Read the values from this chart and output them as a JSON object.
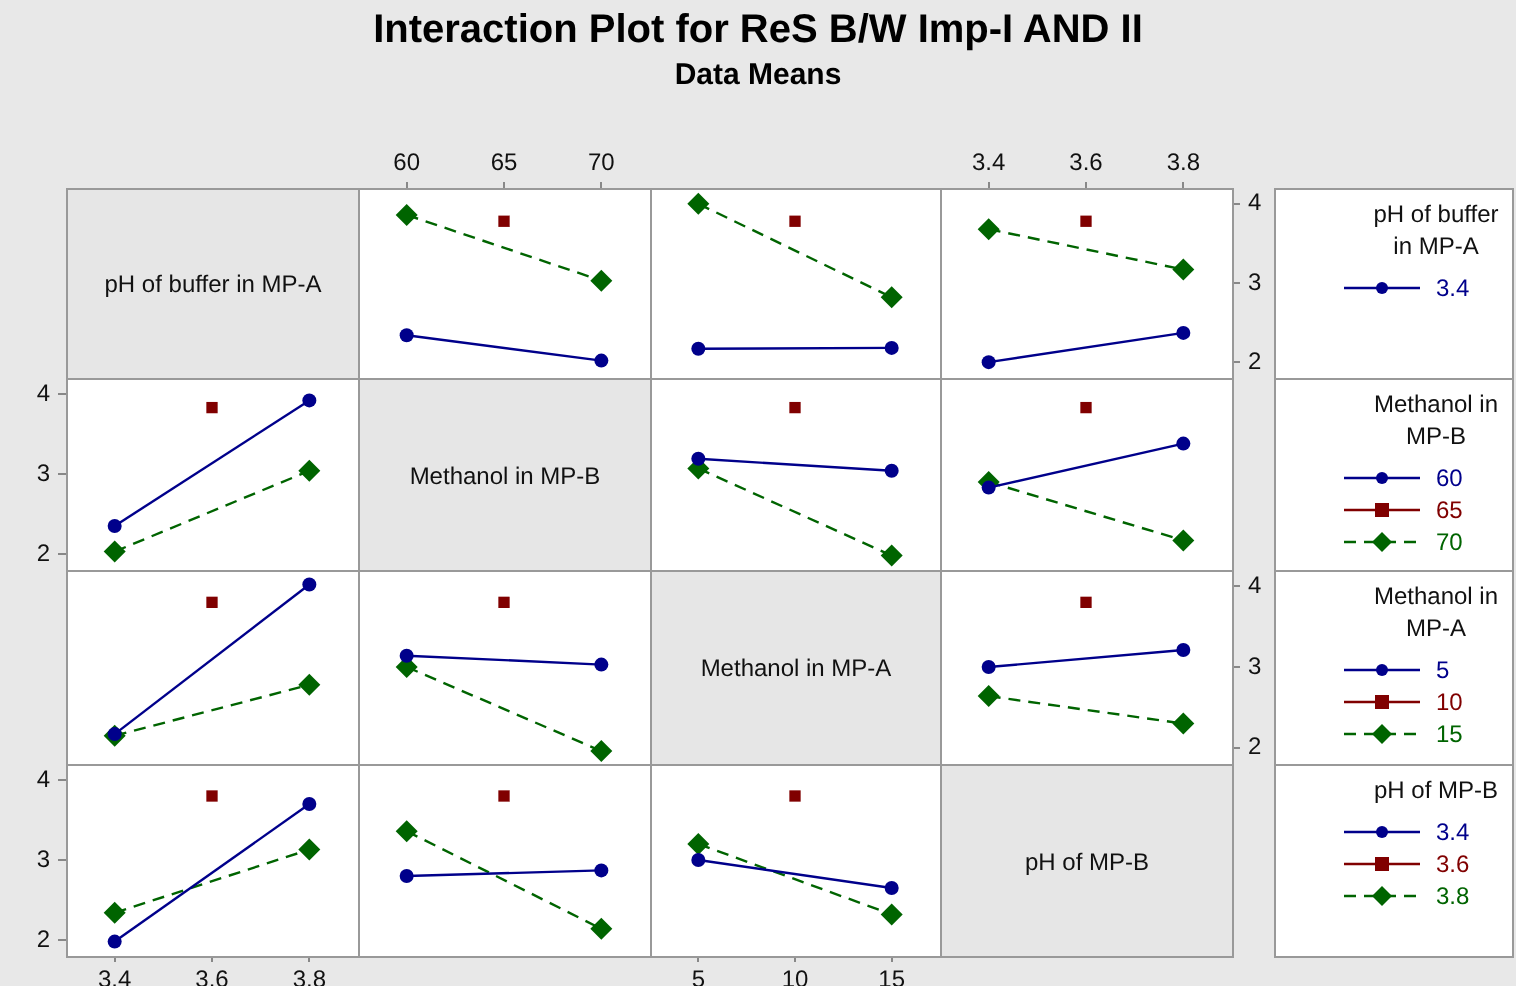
{
  "chart_data": [
    {
      "type": "other",
      "title": "Interaction Plot for ReS B/W Imp-I AND II",
      "subtitle": "Data Means"
    },
    {
      "type": "other",
      "title": "pH of buffer in MP-A"
    },
    {
      "type": "line",
      "x": [
        60,
        65,
        70
      ],
      "xlim": [
        57.5,
        72.5
      ],
      "xticks": [
        60,
        65,
        70
      ],
      "ylim": [
        1.8,
        4.2
      ],
      "yticks": [
        2,
        3,
        4
      ],
      "tick_labels": "x",
      "series": [
        {
          "color": "#00008b",
          "marker": "circle",
          "line_style": "solid",
          "values": [
            2.34,
            null,
            2.02
          ]
        },
        {
          "color": "#800000",
          "marker": "square",
          "line_style": "solid",
          "values": [
            null,
            3.78,
            null
          ]
        },
        {
          "color": "#006400",
          "marker": "diamond",
          "line_style": "dashed",
          "values": [
            3.86,
            null,
            3.03
          ]
        }
      ]
    },
    {
      "type": "line",
      "x": [
        5,
        10,
        15
      ],
      "xlim": [
        2.5,
        17.5
      ],
      "xticks": [
        5,
        10,
        15
      ],
      "ylim": [
        1.8,
        4.2
      ],
      "yticks": [
        2,
        3,
        4
      ],
      "tick_labels": false,
      "series": [
        {
          "color": "#00008b",
          "marker": "circle",
          "line_style": "solid",
          "values": [
            2.17,
            null,
            2.18
          ]
        },
        {
          "color": "#800000",
          "marker": "square",
          "line_style": "solid",
          "values": [
            null,
            3.78,
            null
          ]
        },
        {
          "color": "#006400",
          "marker": "diamond",
          "line_style": "dashed",
          "values": [
            4.0,
            null,
            2.82
          ]
        }
      ]
    },
    {
      "type": "line",
      "x": [
        3.4,
        3.6,
        3.8
      ],
      "xlim": [
        3.3,
        3.9
      ],
      "xticks": [
        3.4,
        3.6,
        3.8
      ],
      "ylim": [
        1.8,
        4.2
      ],
      "yticks": [
        2,
        3,
        4
      ],
      "legend": "right",
      "legend_title": "pH of buffer in MP-A",
      "series": [
        {
          "name": "3.4",
          "color": "#00008b",
          "marker": "circle",
          "line_style": "solid",
          "values": [
            2.0,
            null,
            2.37
          ]
        },
        {
          "color": "#800000",
          "marker": "square",
          "line_style": "solid",
          "values": [
            null,
            3.78,
            null
          ]
        },
        {
          "color": "#006400",
          "marker": "diamond",
          "line_style": "dashed",
          "values": [
            3.68,
            null,
            3.17
          ]
        }
      ]
    },
    {
      "type": "line",
      "x": [
        3.4,
        3.6,
        3.8
      ],
      "xlim": [
        3.3,
        3.9
      ],
      "xticks": [
        3.4,
        3.6,
        3.8
      ],
      "ylim": [
        1.8,
        4.2
      ],
      "yticks": [
        2,
        3,
        4
      ],
      "tick_labels": "y",
      "series": [
        {
          "color": "#00008b",
          "marker": "circle",
          "line_style": "solid",
          "values": [
            2.35,
            null,
            3.92
          ]
        },
        {
          "color": "#800000",
          "marker": "square",
          "line_style": "solid",
          "values": [
            null,
            3.83,
            null
          ]
        },
        {
          "color": "#006400",
          "marker": "diamond",
          "line_style": "dashed",
          "values": [
            2.03,
            null,
            3.04
          ]
        }
      ]
    },
    {
      "type": "other",
      "title": "Methanol in MP-B"
    },
    {
      "type": "line",
      "x": [
        5,
        10,
        15
      ],
      "xlim": [
        2.5,
        17.5
      ],
      "xticks": [
        5,
        10,
        15
      ],
      "ylim": [
        1.8,
        4.2
      ],
      "yticks": [
        2,
        3,
        4
      ],
      "tick_labels": false,
      "series": [
        {
          "color": "#00008b",
          "marker": "circle",
          "line_style": "solid",
          "values": [
            3.19,
            null,
            3.04
          ]
        },
        {
          "color": "#800000",
          "marker": "square",
          "line_style": "solid",
          "values": [
            null,
            3.83,
            null
          ]
        },
        {
          "color": "#006400",
          "marker": "diamond",
          "line_style": "dashed",
          "values": [
            3.07,
            null,
            1.98
          ]
        }
      ]
    },
    {
      "type": "line",
      "x": [
        3.4,
        3.6,
        3.8
      ],
      "xlim": [
        3.3,
        3.9
      ],
      "xticks": [
        3.4,
        3.6,
        3.8
      ],
      "ylim": [
        1.8,
        4.2
      ],
      "yticks": [
        2,
        3,
        4
      ],
      "tick_labels": false,
      "legend": "right",
      "legend_title": "Methanol in MP-B",
      "series": [
        {
          "name": "60",
          "color": "#00008b",
          "marker": "circle",
          "line_style": "solid",
          "values": [
            2.83,
            null,
            3.38
          ]
        },
        {
          "name": "65",
          "color": "#800000",
          "marker": "square",
          "line_style": "solid",
          "values": [
            null,
            3.83,
            null
          ]
        },
        {
          "name": "70",
          "color": "#006400",
          "marker": "diamond",
          "line_style": "dashed",
          "values": [
            2.9,
            null,
            2.17
          ]
        }
      ]
    },
    {
      "type": "line",
      "x": [
        3.4,
        3.6,
        3.8
      ],
      "xlim": [
        3.3,
        3.9
      ],
      "xticks": [
        3.4,
        3.6,
        3.8
      ],
      "ylim": [
        1.8,
        4.2
      ],
      "yticks": [
        2,
        3,
        4
      ],
      "tick_labels": false,
      "series": [
        {
          "color": "#00008b",
          "marker": "circle",
          "line_style": "solid",
          "values": [
            2.17,
            null,
            4.02
          ]
        },
        {
          "color": "#800000",
          "marker": "square",
          "line_style": "solid",
          "values": [
            null,
            3.8,
            null
          ]
        },
        {
          "color": "#006400",
          "marker": "diamond",
          "line_style": "dashed",
          "values": [
            2.15,
            null,
            2.78
          ]
        }
      ]
    },
    {
      "type": "line",
      "x": [
        60,
        65,
        70
      ],
      "xlim": [
        57.5,
        72.5
      ],
      "xticks": [
        60,
        65,
        70
      ],
      "ylim": [
        1.8,
        4.2
      ],
      "yticks": [
        2,
        3,
        4
      ],
      "tick_labels": false,
      "series": [
        {
          "color": "#00008b",
          "marker": "circle",
          "line_style": "solid",
          "values": [
            3.14,
            null,
            3.03
          ]
        },
        {
          "color": "#800000",
          "marker": "square",
          "line_style": "solid",
          "values": [
            null,
            3.8,
            null
          ]
        },
        {
          "color": "#006400",
          "marker": "diamond",
          "line_style": "dashed",
          "values": [
            3.0,
            null,
            1.96
          ]
        }
      ]
    },
    {
      "type": "other",
      "title": "Methanol in MP-A"
    },
    {
      "type": "line",
      "x": [
        3.4,
        3.6,
        3.8
      ],
      "xlim": [
        3.3,
        3.9
      ],
      "xticks": [
        3.4,
        3.6,
        3.8
      ],
      "ylim": [
        1.8,
        4.2
      ],
      "yticks": [
        2,
        3,
        4
      ],
      "tick_labels": "y",
      "legend": "right",
      "legend_title": "Methanol in MP-A",
      "series": [
        {
          "name": "5",
          "color": "#00008b",
          "marker": "circle",
          "line_style": "solid",
          "values": [
            3.0,
            null,
            3.21
          ]
        },
        {
          "name": "10",
          "color": "#800000",
          "marker": "square",
          "line_style": "solid",
          "values": [
            null,
            3.8,
            null
          ]
        },
        {
          "name": "15",
          "color": "#006400",
          "marker": "diamond",
          "line_style": "dashed",
          "values": [
            2.64,
            null,
            2.3
          ]
        }
      ]
    },
    {
      "type": "line",
      "x": [
        3.4,
        3.6,
        3.8
      ],
      "xlim": [
        3.3,
        3.9
      ],
      "xticks": [
        3.4,
        3.6,
        3.8
      ],
      "ylim": [
        1.8,
        4.2
      ],
      "yticks": [
        2,
        3,
        4
      ],
      "series": [
        {
          "color": "#00008b",
          "marker": "circle",
          "line_style": "solid",
          "values": [
            1.98,
            null,
            3.7
          ]
        },
        {
          "color": "#800000",
          "marker": "square",
          "line_style": "solid",
          "values": [
            null,
            3.8,
            null
          ]
        },
        {
          "color": "#006400",
          "marker": "diamond",
          "line_style": "dashed",
          "values": [
            2.34,
            null,
            3.13
          ]
        }
      ]
    },
    {
      "type": "line",
      "x": [
        60,
        65,
        70
      ],
      "xlim": [
        57.5,
        72.5
      ],
      "xticks": [
        60,
        65,
        70
      ],
      "ylim": [
        1.8,
        4.2
      ],
      "yticks": [
        2,
        3,
        4
      ],
      "tick_labels": false,
      "series": [
        {
          "color": "#00008b",
          "marker": "circle",
          "line_style": "solid",
          "values": [
            2.8,
            null,
            2.87
          ]
        },
        {
          "color": "#800000",
          "marker": "square",
          "line_style": "solid",
          "values": [
            null,
            3.8,
            null
          ]
        },
        {
          "color": "#006400",
          "marker": "diamond",
          "line_style": "dashed",
          "values": [
            3.36,
            null,
            2.14
          ]
        }
      ]
    },
    {
      "type": "line",
      "x": [
        5,
        10,
        15
      ],
      "xlim": [
        2.5,
        17.5
      ],
      "xticks": [
        5,
        10,
        15
      ],
      "ylim": [
        1.8,
        4.2
      ],
      "yticks": [
        2,
        3,
        4
      ],
      "tick_labels": "x",
      "legend": "right",
      "legend_title": "pH of MP-B",
      "series": [
        {
          "name": "3.4",
          "color": "#00008b",
          "marker": "circle",
          "line_style": "solid",
          "values": [
            3.0,
            null,
            2.65
          ]
        },
        {
          "name": "3.6",
          "color": "#800000",
          "marker": "square",
          "line_style": "solid",
          "values": [
            null,
            3.8,
            null
          ]
        },
        {
          "name": "3.8",
          "color": "#006400",
          "marker": "diamond",
          "line_style": "dashed",
          "values": [
            3.2,
            null,
            2.32
          ]
        }
      ]
    },
    {
      "type": "other",
      "title": "pH of MP-B"
    }
  ]
}
